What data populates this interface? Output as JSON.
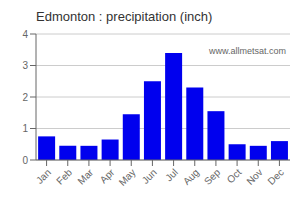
{
  "chart_data": {
    "type": "bar",
    "title": "Edmonton : precipitation (inch)",
    "categories": [
      "Jan",
      "Feb",
      "Mar",
      "Apr",
      "May",
      "Jun",
      "Jul",
      "Aug",
      "Sep",
      "Oct",
      "Nov",
      "Dec"
    ],
    "values": [
      0.75,
      0.45,
      0.45,
      0.65,
      1.45,
      2.5,
      3.4,
      2.3,
      1.55,
      0.5,
      0.45,
      0.6
    ],
    "color": "#0000EE",
    "ylim": [
      0,
      4
    ],
    "yticks": [
      0,
      1,
      2,
      3,
      4
    ],
    "grid": true,
    "annotations": [
      "www.allmetsat.com"
    ]
  }
}
